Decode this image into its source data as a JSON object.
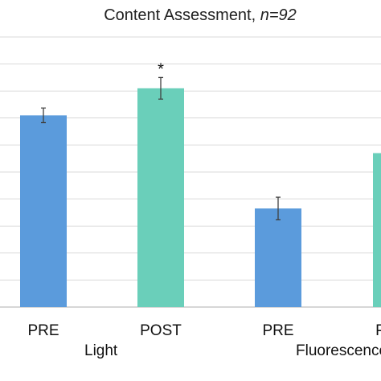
{
  "chart_data": {
    "type": "bar",
    "title_text": "Content Assessment, ",
    "title_n": "n=92",
    "xlabel": "",
    "ylabel": "",
    "ylim": [
      0,
      10
    ],
    "grid": true,
    "legend": "none",
    "groups": [
      {
        "label": "Light",
        "bars": [
          {
            "category": "PRE",
            "value": 7.1,
            "error": 0.27,
            "color": "#5b9bdc",
            "significance": ""
          },
          {
            "category": "POST",
            "value": 8.1,
            "error": 0.4,
            "color": "#6acfba",
            "significance": "*"
          }
        ]
      },
      {
        "label": "Fluorescence",
        "bars": [
          {
            "category": "PRE",
            "value": 3.65,
            "error": 0.42,
            "color": "#5b9bdc",
            "significance": ""
          },
          {
            "category": "POST",
            "value": 5.7,
            "error": 0.3,
            "color": "#6acfba",
            "significance": ""
          }
        ]
      }
    ]
  },
  "colors": {
    "gridline": "#d9d9d9",
    "axis": "#bfbfbf",
    "error_bar": "#404040"
  }
}
